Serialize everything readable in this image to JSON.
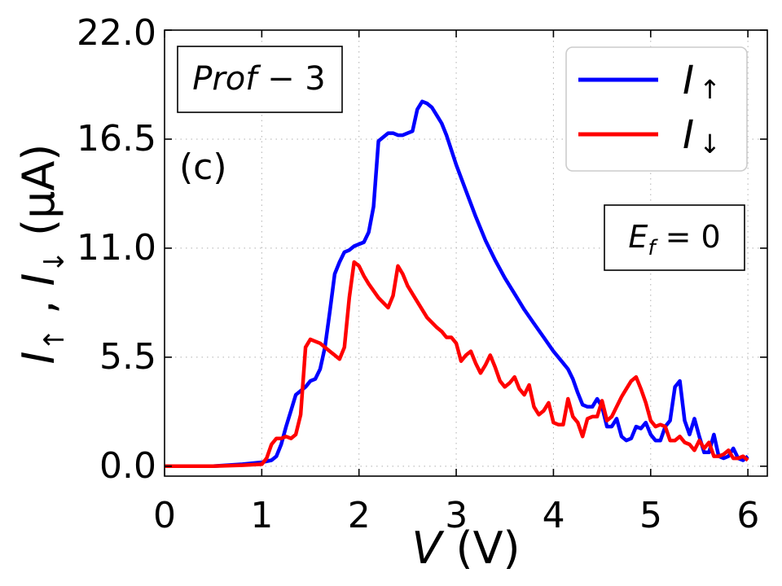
{
  "chart_data": {
    "type": "line",
    "x_ticks": [
      "0",
      "1",
      "2",
      "3",
      "4",
      "5",
      "6"
    ],
    "y_ticks": [
      "0.0",
      "5.5",
      "11.0",
      "16.5",
      "22.0"
    ],
    "xlim": [
      0,
      6.2
    ],
    "ylim": [
      -0.5,
      22.0
    ],
    "grid": true,
    "xlabel": {
      "main": "V",
      "unit": " (V)"
    },
    "ylabel": {
      "part1": "I",
      "arrow1": "↑",
      "sep": " , ",
      "part2": "I",
      "arrow2": "↓",
      "unit": " (μA)"
    },
    "panel_label": "(c)",
    "profile_label": {
      "main": "Prof",
      "suffix": " − 3"
    },
    "energy_label": {
      "main": "E",
      "sub": "f",
      "rest": " = 0"
    },
    "legend": {
      "position": "top-right",
      "entries": [
        {
          "main": "I",
          "arrow": "↑",
          "color": "#0000ff"
        },
        {
          "main": "I",
          "arrow": "↓",
          "color": "#ff0000"
        }
      ]
    },
    "series": [
      {
        "name": "I↑",
        "color": "#0000ff",
        "points": [
          [
            0.0,
            0.0
          ],
          [
            0.5,
            0.0
          ],
          [
            0.8,
            0.1
          ],
          [
            1.0,
            0.2
          ],
          [
            1.1,
            0.3
          ],
          [
            1.15,
            0.5
          ],
          [
            1.2,
            1.1
          ],
          [
            1.25,
            2.0
          ],
          [
            1.3,
            2.8
          ],
          [
            1.35,
            3.6
          ],
          [
            1.4,
            3.8
          ],
          [
            1.45,
            4.0
          ],
          [
            1.5,
            4.3
          ],
          [
            1.55,
            4.4
          ],
          [
            1.6,
            4.9
          ],
          [
            1.65,
            6.0
          ],
          [
            1.7,
            7.8
          ],
          [
            1.75,
            9.7
          ],
          [
            1.8,
            10.3
          ],
          [
            1.85,
            10.8
          ],
          [
            1.9,
            10.9
          ],
          [
            1.95,
            11.1
          ],
          [
            2.0,
            11.2
          ],
          [
            2.05,
            11.3
          ],
          [
            2.1,
            11.8
          ],
          [
            2.15,
            13.1
          ],
          [
            2.2,
            16.4
          ],
          [
            2.25,
            16.6
          ],
          [
            2.3,
            16.8
          ],
          [
            2.35,
            16.8
          ],
          [
            2.4,
            16.7
          ],
          [
            2.45,
            16.7
          ],
          [
            2.5,
            16.8
          ],
          [
            2.55,
            16.9
          ],
          [
            2.6,
            18.0
          ],
          [
            2.65,
            18.4
          ],
          [
            2.7,
            18.3
          ],
          [
            2.75,
            18.1
          ],
          [
            2.8,
            17.7
          ],
          [
            2.85,
            17.3
          ],
          [
            2.9,
            16.7
          ],
          [
            3.0,
            15.2
          ],
          [
            3.1,
            13.9
          ],
          [
            3.2,
            12.6
          ],
          [
            3.3,
            11.4
          ],
          [
            3.4,
            10.4
          ],
          [
            3.5,
            9.5
          ],
          [
            3.6,
            8.7
          ],
          [
            3.7,
            7.9
          ],
          [
            3.8,
            7.2
          ],
          [
            3.9,
            6.5
          ],
          [
            4.0,
            5.8
          ],
          [
            4.1,
            5.2
          ],
          [
            4.15,
            4.9
          ],
          [
            4.2,
            4.4
          ],
          [
            4.25,
            3.7
          ],
          [
            4.3,
            3.1
          ],
          [
            4.35,
            3.0
          ],
          [
            4.4,
            3.0
          ],
          [
            4.45,
            3.4
          ],
          [
            4.5,
            3.0
          ],
          [
            4.55,
            2.0
          ],
          [
            4.6,
            2.0
          ],
          [
            4.65,
            2.4
          ],
          [
            4.7,
            1.5
          ],
          [
            4.75,
            1.3
          ],
          [
            4.8,
            1.4
          ],
          [
            4.85,
            2.0
          ],
          [
            4.9,
            1.9
          ],
          [
            4.95,
            2.2
          ],
          [
            5.0,
            1.6
          ],
          [
            5.05,
            1.3
          ],
          [
            5.1,
            1.3
          ],
          [
            5.15,
            2.0
          ],
          [
            5.2,
            2.3
          ],
          [
            5.25,
            4.0
          ],
          [
            5.3,
            4.3
          ],
          [
            5.35,
            2.3
          ],
          [
            5.4,
            1.6
          ],
          [
            5.45,
            2.4
          ],
          [
            5.5,
            1.5
          ],
          [
            5.55,
            0.7
          ],
          [
            5.6,
            0.7
          ],
          [
            5.65,
            1.6
          ],
          [
            5.7,
            0.5
          ],
          [
            5.75,
            0.4
          ],
          [
            5.8,
            0.5
          ],
          [
            5.85,
            0.9
          ],
          [
            5.9,
            0.4
          ],
          [
            5.95,
            0.3
          ],
          [
            6.0,
            0.5
          ]
        ]
      },
      {
        "name": "I↓",
        "color": "#ff0000",
        "points": [
          [
            0.0,
            0.0
          ],
          [
            0.5,
            0.0
          ],
          [
            0.8,
            0.05
          ],
          [
            1.0,
            0.1
          ],
          [
            1.05,
            0.4
          ],
          [
            1.1,
            1.1
          ],
          [
            1.15,
            1.4
          ],
          [
            1.2,
            1.4
          ],
          [
            1.25,
            1.5
          ],
          [
            1.3,
            1.4
          ],
          [
            1.35,
            1.6
          ],
          [
            1.4,
            2.6
          ],
          [
            1.45,
            6.0
          ],
          [
            1.5,
            6.4
          ],
          [
            1.55,
            6.3
          ],
          [
            1.6,
            6.2
          ],
          [
            1.65,
            6.0
          ],
          [
            1.7,
            5.8
          ],
          [
            1.75,
            5.6
          ],
          [
            1.8,
            5.4
          ],
          [
            1.85,
            6.0
          ],
          [
            1.9,
            8.5
          ],
          [
            1.95,
            10.3
          ],
          [
            2.0,
            10.1
          ],
          [
            2.05,
            9.6
          ],
          [
            2.1,
            9.2
          ],
          [
            2.2,
            8.5
          ],
          [
            2.3,
            8.0
          ],
          [
            2.35,
            8.6
          ],
          [
            2.4,
            10.1
          ],
          [
            2.45,
            9.7
          ],
          [
            2.5,
            9.1
          ],
          [
            2.6,
            8.3
          ],
          [
            2.7,
            7.5
          ],
          [
            2.8,
            7.0
          ],
          [
            2.85,
            6.8
          ],
          [
            2.9,
            6.5
          ],
          [
            2.95,
            6.5
          ],
          [
            3.0,
            6.2
          ],
          [
            3.05,
            5.3
          ],
          [
            3.1,
            5.6
          ],
          [
            3.15,
            5.8
          ],
          [
            3.2,
            5.2
          ],
          [
            3.25,
            4.7
          ],
          [
            3.3,
            5.1
          ],
          [
            3.35,
            5.6
          ],
          [
            3.4,
            5.0
          ],
          [
            3.45,
            4.3
          ],
          [
            3.5,
            4.0
          ],
          [
            3.55,
            4.2
          ],
          [
            3.6,
            4.5
          ],
          [
            3.65,
            3.9
          ],
          [
            3.7,
            3.6
          ],
          [
            3.75,
            4.1
          ],
          [
            3.8,
            3.0
          ],
          [
            3.85,
            2.6
          ],
          [
            3.9,
            2.8
          ],
          [
            3.95,
            3.2
          ],
          [
            4.0,
            2.2
          ],
          [
            4.05,
            2.1
          ],
          [
            4.1,
            2.1
          ],
          [
            4.15,
            3.4
          ],
          [
            4.2,
            2.5
          ],
          [
            4.25,
            2.2
          ],
          [
            4.3,
            1.5
          ],
          [
            4.35,
            2.4
          ],
          [
            4.4,
            2.5
          ],
          [
            4.45,
            2.5
          ],
          [
            4.5,
            3.3
          ],
          [
            4.55,
            2.3
          ],
          [
            4.6,
            2.5
          ],
          [
            4.65,
            3.0
          ],
          [
            4.7,
            3.5
          ],
          [
            4.75,
            3.9
          ],
          [
            4.8,
            4.3
          ],
          [
            4.85,
            4.5
          ],
          [
            4.9,
            3.9
          ],
          [
            4.95,
            3.2
          ],
          [
            5.0,
            2.3
          ],
          [
            5.05,
            2.0
          ],
          [
            5.1,
            2.1
          ],
          [
            5.15,
            2.0
          ],
          [
            5.2,
            1.3
          ],
          [
            5.25,
            1.3
          ],
          [
            5.3,
            1.5
          ],
          [
            5.35,
            1.2
          ],
          [
            5.4,
            1.1
          ],
          [
            5.45,
            0.8
          ],
          [
            5.5,
            1.3
          ],
          [
            5.55,
            0.9
          ],
          [
            5.6,
            1.2
          ],
          [
            5.65,
            0.5
          ],
          [
            5.7,
            0.5
          ],
          [
            5.75,
            0.6
          ],
          [
            5.8,
            0.8
          ],
          [
            5.85,
            0.4
          ],
          [
            5.9,
            0.4
          ],
          [
            5.95,
            0.5
          ],
          [
            6.0,
            0.3
          ]
        ]
      }
    ]
  }
}
